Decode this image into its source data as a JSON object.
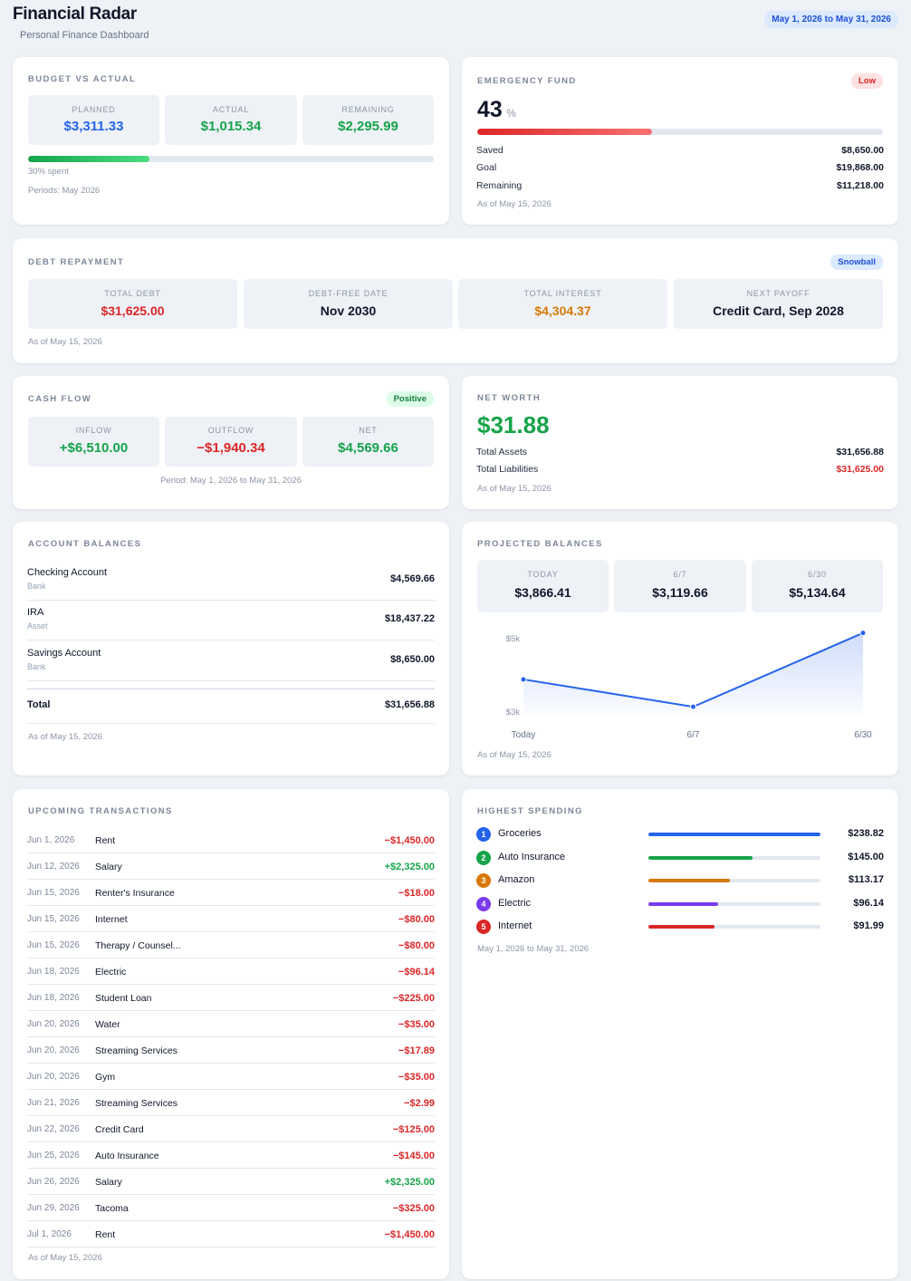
{
  "header": {
    "title": "Financial Radar",
    "subtitle": "Personal Finance Dashboard",
    "date_range": "May 1, 2026 to May 31, 2026"
  },
  "budget": {
    "title": "BUDGET VS ACTUAL",
    "planned_label": "PLANNED",
    "planned_value": "$3,311.33",
    "actual_label": "ACTUAL",
    "actual_value": "$1,015.34",
    "remaining_label": "REMAINING",
    "remaining_value": "$2,295.99",
    "spent_fraction": 0.3,
    "spent_text": "30% spent",
    "periods_text": "Periods: May 2026"
  },
  "emergency": {
    "title": "EMERGENCY FUND",
    "badge": "Low",
    "percent": "43",
    "percent_unit": "%",
    "progress_fraction": 0.43,
    "saved_label": "Saved",
    "saved_value": "$8,650.00",
    "goal_label": "Goal",
    "goal_value": "$19,868.00",
    "remaining_label": "Remaining",
    "remaining_value": "$11,218.00",
    "as_of": "As of May 15, 2026"
  },
  "debt": {
    "title": "DEBT REPAYMENT",
    "badge": "Snowball",
    "total_debt_label": "TOTAL DEBT",
    "total_debt_value": "$31,625.00",
    "debt_free_label": "DEBT-FREE DATE",
    "debt_free_value": "Nov 2030",
    "interest_label": "TOTAL INTEREST",
    "interest_value": "$4,304.37",
    "next_payoff_label": "NEXT PAYOFF",
    "next_payoff_value": "Credit Card, Sep 2028",
    "as_of": "As of May 15, 2026"
  },
  "cashflow": {
    "title": "CASH FLOW",
    "badge": "Positive",
    "inflow_label": "INFLOW",
    "inflow_value": "+$6,510.00",
    "outflow_label": "OUTFLOW",
    "outflow_value": "−$1,940.34",
    "net_label": "NET",
    "net_value": "$4,569.66",
    "period": "Period: May 1, 2026 to May 31, 2026"
  },
  "networth": {
    "title": "NET WORTH",
    "value": "$31.88",
    "assets_label": "Total Assets",
    "assets_value": "$31,656.88",
    "liabilities_label": "Total Liabilities",
    "liabilities_value": "$31,625.00",
    "as_of": "As of May 15, 2026"
  },
  "accounts": {
    "title": "ACCOUNT BALANCES",
    "items": [
      {
        "name": "Checking Account",
        "type": "Bank",
        "value": "$4,569.66"
      },
      {
        "name": "IRA",
        "type": "Asset",
        "value": "$18,437.22"
      },
      {
        "name": "Savings Account",
        "type": "Bank",
        "value": "$8,650.00"
      }
    ],
    "total_label": "Total",
    "total_value": "$31,656.88",
    "as_of": "As of May 15, 2026"
  },
  "projected": {
    "title": "PROJECTED BALANCES",
    "boxes": [
      {
        "label": "TODAY",
        "value": "$3,866.41"
      },
      {
        "label": "6/7",
        "value": "$3,119.66"
      },
      {
        "label": "6/30",
        "value": "$5,134.64"
      }
    ],
    "as_of": "As of May 15, 2026"
  },
  "chart_data": {
    "type": "area",
    "categories": [
      "Today",
      "6/7",
      "6/30"
    ],
    "values": [
      3866.41,
      3119.66,
      5134.64
    ],
    "ytick_labels": [
      "$5k",
      "$3k"
    ],
    "yticks": [
      5000,
      3000
    ],
    "ylim": [
      2900,
      5300
    ],
    "color": "#2563eb"
  },
  "upcoming": {
    "title": "UPCOMING TRANSACTIONS",
    "items": [
      {
        "date": "Jun 1, 2026",
        "name": "Rent",
        "amount": "−$1,450.00",
        "kind": "out"
      },
      {
        "date": "Jun 12, 2026",
        "name": "Salary",
        "amount": "+$2,325.00",
        "kind": "in"
      },
      {
        "date": "Jun 15, 2026",
        "name": "Renter's Insurance",
        "amount": "−$18.00",
        "kind": "out"
      },
      {
        "date": "Jun 15, 2026",
        "name": "Internet",
        "amount": "−$80.00",
        "kind": "out"
      },
      {
        "date": "Jun 15, 2026",
        "name": "Therapy / Counsel...",
        "amount": "−$80.00",
        "kind": "out"
      },
      {
        "date": "Jun 18, 2026",
        "name": "Electric",
        "amount": "−$96.14",
        "kind": "out"
      },
      {
        "date": "Jun 18, 2026",
        "name": "Student Loan",
        "amount": "−$225.00",
        "kind": "out"
      },
      {
        "date": "Jun 20, 2026",
        "name": "Water",
        "amount": "−$35.00",
        "kind": "out"
      },
      {
        "date": "Jun 20, 2026",
        "name": "Streaming Services",
        "amount": "−$17.89",
        "kind": "out"
      },
      {
        "date": "Jun 20, 2026",
        "name": "Gym",
        "amount": "−$35.00",
        "kind": "out"
      },
      {
        "date": "Jun 21, 2026",
        "name": "Streaming Services",
        "amount": "−$2.99",
        "kind": "out"
      },
      {
        "date": "Jun 22, 2026",
        "name": "Credit Card",
        "amount": "−$125.00",
        "kind": "out"
      },
      {
        "date": "Jun 25, 2026",
        "name": "Auto Insurance",
        "amount": "−$145.00",
        "kind": "out"
      },
      {
        "date": "Jun 26, 2026",
        "name": "Salary",
        "amount": "+$2,325.00",
        "kind": "in"
      },
      {
        "date": "Jun 29, 2026",
        "name": "Tacoma",
        "amount": "−$325.00",
        "kind": "out"
      },
      {
        "date": "Jul 1, 2026",
        "name": "Rent",
        "amount": "−$1,450.00",
        "kind": "out"
      }
    ],
    "as_of": "As of May 15, 2026"
  },
  "spending": {
    "title": "HIGHEST SPENDING",
    "items": [
      {
        "rank": "1",
        "name": "Groceries",
        "value": "$238.82",
        "fraction": 1.0,
        "color": "#2563eb"
      },
      {
        "rank": "2",
        "name": "Auto Insurance",
        "value": "$145.00",
        "fraction": 0.607,
        "color": "#16a34a"
      },
      {
        "rank": "3",
        "name": "Amazon",
        "value": "$113.17",
        "fraction": 0.474,
        "color": "#d97706"
      },
      {
        "rank": "4",
        "name": "Electric",
        "value": "$96.14",
        "fraction": 0.403,
        "color": "#7c3aed"
      },
      {
        "rank": "5",
        "name": "Internet",
        "value": "$91.99",
        "fraction": 0.385,
        "color": "#dc2626"
      }
    ],
    "period": "May 1, 2026 to May 31, 2026"
  },
  "colors": {
    "blue": "#2563eb",
    "green": "#16a34a",
    "red": "#dc2626",
    "orange": "#d97706"
  }
}
